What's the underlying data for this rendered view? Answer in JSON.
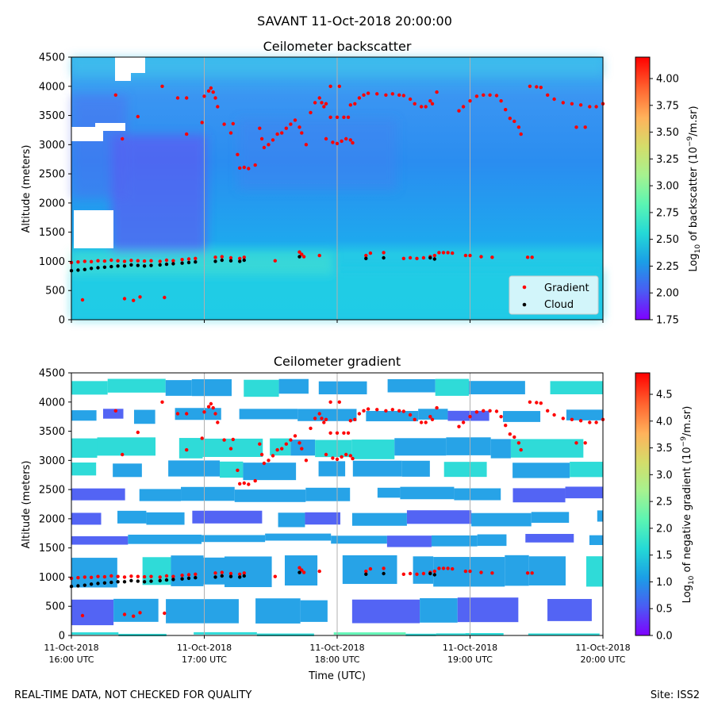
{
  "figure_title": "SAVANT 11-Oct-2018 20:00:00",
  "footer": {
    "left_note": "REAL-TIME DATA, NOT CHECKED FOR QUALITY",
    "site": "Site: ISS2"
  },
  "colors": {
    "gradient_marker": "#ff0000",
    "cloud_marker": "#000000",
    "colormap": [
      "#7f00ff",
      "#4a5cf3",
      "#1b9ee6",
      "#24d9d6",
      "#5bf5b3",
      "#a6f28f",
      "#d4dd6a",
      "#ffb25b",
      "#ff6530",
      "#ff0000"
    ]
  },
  "chart_data": [
    {
      "type": "heatmap",
      "title": "Ceilometer backscatter",
      "ylabel": "Altitude (meters)",
      "xlabel": "",
      "xlim": [
        "2018-10-11T16:00",
        "2018-10-11T20:00"
      ],
      "ylim": [
        0,
        4500
      ],
      "yticks": [
        "0",
        "500",
        "1000",
        "1500",
        "2000",
        "2500",
        "3000",
        "3500",
        "4000",
        "4500"
      ],
      "xtick_times": [
        "2018-10-11T16:00",
        "2018-10-11T17:00",
        "2018-10-11T18:00",
        "2018-10-11T19:00",
        "2018-10-11T20:00"
      ],
      "grid": "vertical",
      "colorbar": {
        "label_prefix": "Log",
        "label_sub": "10",
        "label_mid": " of backscatter (10",
        "label_sup": "−9",
        "label_suffix": "/m.sr)",
        "range": [
          1.75,
          4.2
        ],
        "ticks": [
          "1.75",
          "2.00",
          "2.25",
          "2.50",
          "2.75",
          "3.00",
          "3.25",
          "3.50",
          "3.75",
          "4.00"
        ]
      },
      "legend": {
        "placement": "lower-right",
        "entries": [
          {
            "label": "Gradient",
            "color": "#ff0000"
          },
          {
            "label": "Cloud",
            "color": "#000000"
          }
        ]
      },
      "series": [
        {
          "name": "Gradient",
          "color": "#ff0000",
          "points": [
            [
              "16:00",
              980
            ],
            [
              "16:03",
              990
            ],
            [
              "16:06",
              1000
            ],
            [
              "16:09",
              995
            ],
            [
              "16:12",
              1010
            ],
            [
              "16:15",
              1005
            ],
            [
              "16:18",
              1020
            ],
            [
              "16:21",
              1010
            ],
            [
              "16:24",
              1000
            ],
            [
              "16:27",
              1015
            ],
            [
              "16:30",
              1010
            ],
            [
              "16:33",
              1005
            ],
            [
              "16:36",
              1010
            ],
            [
              "16:40",
              1000
            ],
            [
              "16:43",
              1020
            ],
            [
              "16:46",
              1010
            ],
            [
              "16:50",
              1030
            ],
            [
              "16:53",
              1040
            ],
            [
              "16:56",
              1050
            ],
            [
              "17:05",
              1070
            ],
            [
              "17:08",
              1080
            ],
            [
              "17:12",
              1060
            ],
            [
              "17:16",
              1050
            ],
            [
              "17:18",
              1070
            ],
            [
              "17:32",
              1010
            ],
            [
              "17:43",
              1160
            ],
            [
              "17:44",
              1120
            ],
            [
              "17:45",
              1080
            ],
            [
              "17:52",
              1100
            ],
            [
              "18:13",
              1100
            ],
            [
              "18:15",
              1140
            ],
            [
              "18:21",
              1150
            ],
            [
              "18:30",
              1050
            ],
            [
              "18:33",
              1060
            ],
            [
              "18:36",
              1050
            ],
            [
              "18:39",
              1060
            ],
            [
              "18:42",
              1080
            ],
            [
              "18:44",
              1100
            ],
            [
              "18:46",
              1150
            ],
            [
              "18:48",
              1150
            ],
            [
              "18:50",
              1150
            ],
            [
              "18:52",
              1140
            ],
            [
              "18:58",
              1100
            ],
            [
              "19:00",
              1100
            ],
            [
              "19:05",
              1080
            ],
            [
              "19:10",
              1070
            ],
            [
              "19:26",
              1070
            ],
            [
              "19:28",
              1070
            ],
            [
              "16:05",
              340
            ],
            [
              "16:24",
              360
            ],
            [
              "16:28",
              330
            ],
            [
              "16:31",
              390
            ],
            [
              "16:42",
              380
            ],
            [
              "16:20",
              3850
            ],
            [
              "16:23",
              3100
            ],
            [
              "16:30",
              3480
            ],
            [
              "16:41",
              4000
            ],
            [
              "16:48",
              3800
            ],
            [
              "16:52",
              3800
            ],
            [
              "16:52",
              3180
            ],
            [
              "16:59",
              3380
            ],
            [
              "17:00",
              3830
            ],
            [
              "17:02",
              3920
            ],
            [
              "17:03",
              3970
            ],
            [
              "17:04",
              3900
            ],
            [
              "17:05",
              3800
            ],
            [
              "17:06",
              3650
            ],
            [
              "17:09",
              3350
            ],
            [
              "17:12",
              3200
            ],
            [
              "17:13",
              3360
            ],
            [
              "17:15",
              2830
            ],
            [
              "17:16",
              2600
            ],
            [
              "17:18",
              2610
            ],
            [
              "17:20",
              2590
            ],
            [
              "17:23",
              2650
            ],
            [
              "17:25",
              3280
            ],
            [
              "17:26",
              3100
            ],
            [
              "17:27",
              2950
            ],
            [
              "17:29",
              3000
            ],
            [
              "17:31",
              3080
            ],
            [
              "17:33",
              3180
            ],
            [
              "17:35",
              3200
            ],
            [
              "17:37",
              3280
            ],
            [
              "17:39",
              3350
            ],
            [
              "17:41",
              3420
            ],
            [
              "17:43",
              3300
            ],
            [
              "17:44",
              3200
            ],
            [
              "17:46",
              3000
            ],
            [
              "17:48",
              3550
            ],
            [
              "17:50",
              3720
            ],
            [
              "17:52",
              3800
            ],
            [
              "17:53",
              3720
            ],
            [
              "17:54",
              3650
            ],
            [
              "17:55",
              3700
            ],
            [
              "17:57",
              3470
            ],
            [
              "18:00",
              3470
            ],
            [
              "18:03",
              3470
            ],
            [
              "18:05",
              3470
            ],
            [
              "17:55",
              3100
            ],
            [
              "17:58",
              3040
            ],
            [
              "18:00",
              3020
            ],
            [
              "18:02",
              3060
            ],
            [
              "18:04",
              3100
            ],
            [
              "18:06",
              3080
            ],
            [
              "18:07",
              3030
            ],
            [
              "18:06",
              3680
            ],
            [
              "17:57",
              4000
            ],
            [
              "18:01",
              4000
            ],
            [
              "18:08",
              3700
            ],
            [
              "18:10",
              3800
            ],
            [
              "18:12",
              3850
            ],
            [
              "18:14",
              3880
            ],
            [
              "18:18",
              3870
            ],
            [
              "18:22",
              3850
            ],
            [
              "18:25",
              3870
            ],
            [
              "18:28",
              3850
            ],
            [
              "18:30",
              3840
            ],
            [
              "18:33",
              3780
            ],
            [
              "18:35",
              3700
            ],
            [
              "18:38",
              3650
            ],
            [
              "18:40",
              3650
            ],
            [
              "18:42",
              3750
            ],
            [
              "18:43",
              3700
            ],
            [
              "18:45",
              3900
            ],
            [
              "18:55",
              3580
            ],
            [
              "18:57",
              3650
            ],
            [
              "19:00",
              3750
            ],
            [
              "19:03",
              3830
            ],
            [
              "19:06",
              3850
            ],
            [
              "19:09",
              3850
            ],
            [
              "19:12",
              3840
            ],
            [
              "19:14",
              3750
            ],
            [
              "19:16",
              3600
            ],
            [
              "19:18",
              3450
            ],
            [
              "19:20",
              3400
            ],
            [
              "19:22",
              3300
            ],
            [
              "19:23",
              3180
            ],
            [
              "19:27",
              4000
            ],
            [
              "19:30",
              3990
            ],
            [
              "19:32",
              3980
            ],
            [
              "19:35",
              3850
            ],
            [
              "19:38",
              3780
            ],
            [
              "19:42",
              3720
            ],
            [
              "19:46",
              3700
            ],
            [
              "19:50",
              3680
            ],
            [
              "19:54",
              3650
            ],
            [
              "19:57",
              3650
            ],
            [
              "20:00",
              3700
            ],
            [
              "19:48",
              3300
            ],
            [
              "19:52",
              3300
            ]
          ]
        },
        {
          "name": "Cloud",
          "color": "#000000",
          "points": [
            [
              "16:00",
              840
            ],
            [
              "16:03",
              850
            ],
            [
              "16:06",
              860
            ],
            [
              "16:09",
              880
            ],
            [
              "16:12",
              890
            ],
            [
              "16:15",
              900
            ],
            [
              "16:18",
              910
            ],
            [
              "16:21",
              920
            ],
            [
              "16:24",
              920
            ],
            [
              "16:27",
              940
            ],
            [
              "16:30",
              930
            ],
            [
              "16:33",
              920
            ],
            [
              "16:36",
              930
            ],
            [
              "16:40",
              940
            ],
            [
              "16:43",
              950
            ],
            [
              "16:46",
              960
            ],
            [
              "16:50",
              970
            ],
            [
              "16:53",
              980
            ],
            [
              "16:56",
              990
            ],
            [
              "17:05",
              1000
            ],
            [
              "17:08",
              1020
            ],
            [
              "17:12",
              1010
            ],
            [
              "17:16",
              1000
            ],
            [
              "17:18",
              1020
            ],
            [
              "17:43",
              1080
            ],
            [
              "18:13",
              1050
            ],
            [
              "18:21",
              1060
            ],
            [
              "18:42",
              1060
            ],
            [
              "18:44",
              1040
            ]
          ]
        }
      ]
    },
    {
      "type": "heatmap",
      "title": "Ceilometer gradient",
      "ylabel": "Altitude (meters)",
      "xlabel": "Time (UTC)",
      "xlim": [
        "2018-10-11T16:00",
        "2018-10-11T20:00"
      ],
      "ylim": [
        0,
        4500
      ],
      "yticks": [
        "0",
        "500",
        "1000",
        "1500",
        "2000",
        "2500",
        "3000",
        "3500",
        "4000",
        "4500"
      ],
      "xtick_times": [
        "2018-10-11T16:00",
        "2018-10-11T17:00",
        "2018-10-11T18:00",
        "2018-10-11T19:00",
        "2018-10-11T20:00"
      ],
      "xticks": [
        [
          "11-Oct-2018",
          "16:00 UTC"
        ],
        [
          "11-Oct-2018",
          "17:00 UTC"
        ],
        [
          "11-Oct-2018",
          "18:00 UTC"
        ],
        [
          "11-Oct-2018",
          "19:00 UTC"
        ],
        [
          "11-Oct-2018",
          "20:00 UTC"
        ]
      ],
      "grid": "vertical",
      "colorbar": {
        "label_prefix": "Log",
        "label_sub": "10",
        "label_mid": " of negative gradient (10",
        "label_sup": "−9",
        "label_suffix": "/m.sr)",
        "range": [
          0,
          4.9
        ],
        "ticks": [
          "0.0",
          "0.5",
          "1.0",
          "1.5",
          "2.0",
          "2.5",
          "3.0",
          "3.5",
          "4.0",
          "4.5"
        ]
      },
      "bands": [
        {
          "alt": [
            0,
            60
          ],
          "level": 1.8
        },
        {
          "alt": [
            200,
            650
          ],
          "level": 0.9
        },
        {
          "alt": [
            850,
            1380
          ],
          "level": 1.3
        },
        {
          "alt": [
            1550,
            1750
          ],
          "level": 1.0
        },
        {
          "alt": [
            1900,
            2150
          ],
          "level": 1.1
        },
        {
          "alt": [
            2300,
            2550
          ],
          "level": 1.2
        },
        {
          "alt": [
            2700,
            3000
          ],
          "level": 1.3
        },
        {
          "alt": [
            3050,
            3400
          ],
          "level": 1.5
        },
        {
          "alt": [
            3650,
            3900
          ],
          "level": 1.2
        },
        {
          "alt": [
            4100,
            4400
          ],
          "level": 1.4
        }
      ],
      "series_from_panel": 0
    }
  ]
}
